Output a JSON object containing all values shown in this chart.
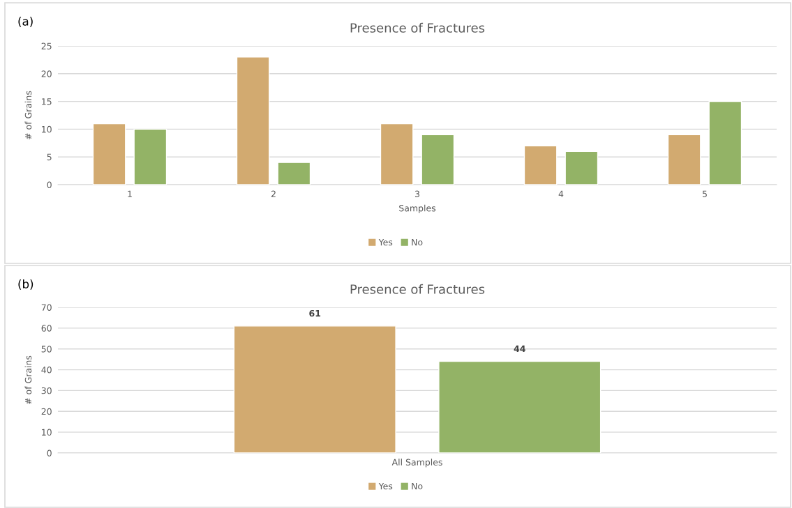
{
  "chart_data": [
    {
      "type": "bar",
      "title": "Presence of Fractures",
      "annotations": [
        "(a)"
      ],
      "xlabel": "Samples",
      "ylabel": "# of Grains",
      "categories": [
        "1",
        "2",
        "3",
        "4",
        "5"
      ],
      "series": [
        {
          "name": "Yes",
          "color": "#d2aa70",
          "values": [
            11,
            23,
            11,
            7,
            9
          ]
        },
        {
          "name": "No",
          "color": "#93b366",
          "values": [
            10,
            4,
            9,
            6,
            15
          ]
        }
      ],
      "ylim": [
        0,
        25
      ],
      "yticks": [
        0,
        5,
        10,
        15,
        20,
        25
      ],
      "grid": "y",
      "legend": "bottom"
    },
    {
      "type": "bar",
      "title": "Presence of Fractures",
      "annotations": [
        "(b)"
      ],
      "ylabel": "# of Grains",
      "categories": [
        "All Samples"
      ],
      "series": [
        {
          "name": "Yes",
          "color": "#d2aa70",
          "values": [
            61
          ]
        },
        {
          "name": "No",
          "color": "#93b366",
          "values": [
            44
          ]
        }
      ],
      "ylim": [
        0,
        70
      ],
      "yticks": [
        0,
        10,
        20,
        30,
        40,
        50,
        60,
        70
      ],
      "grid": "y",
      "legend": "bottom",
      "data_labels": true
    }
  ]
}
